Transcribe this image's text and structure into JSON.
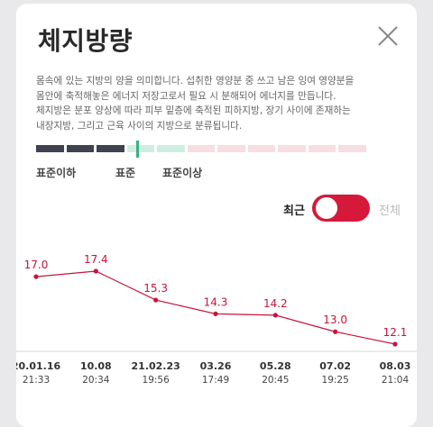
{
  "header": {
    "title": "체지방량",
    "close_icon": "close-icon"
  },
  "description": "몸속에 있는 지방의 양을 의미합니다. 섭취한 영양분 중 쓰고 남은 잉여 영양분을\n몸안에 축적해놓은 에너지 저장고로서 필요 시 분해되어 에너지를 만듭니다.\n체지방은 분포 양상에 따라 피부 밑층에 축적된 피하지방, 장기 사이에 존재하는\n내장지방, 그리고 근육 사이의 지방으로 분류됩니다.",
  "scale": {
    "labels": [
      "표준이하",
      "표준",
      "표준이상"
    ],
    "colors": {
      "below": "#3f4350",
      "normal": "#cfeee2",
      "above": "#f8dde2",
      "marker": "#35b383"
    }
  },
  "toggle": {
    "left_label": "최근",
    "right_label": "전체",
    "state": "recent",
    "color": "#d6193a"
  },
  "chart_data": {
    "type": "line",
    "color": "#c8143a",
    "points": [
      {
        "label": "17.0",
        "value": 17.0,
        "date": "20.01.16",
        "time": "21:33"
      },
      {
        "label": "17.4",
        "value": 17.4,
        "date": "10.08",
        "time": "20:34"
      },
      {
        "label": "15.3",
        "value": 15.3,
        "date": "21.02.23",
        "time": "19:56"
      },
      {
        "label": "14.3",
        "value": 14.3,
        "date": "03.26",
        "time": "17:49"
      },
      {
        "label": "14.2",
        "value": 14.2,
        "date": "05.28",
        "time": "20:45"
      },
      {
        "label": "13.0",
        "value": 13.0,
        "date": "07.02",
        "time": "19:25"
      },
      {
        "label": "12.1",
        "value": 12.1,
        "date": "08.03",
        "time": "21:04"
      }
    ]
  }
}
